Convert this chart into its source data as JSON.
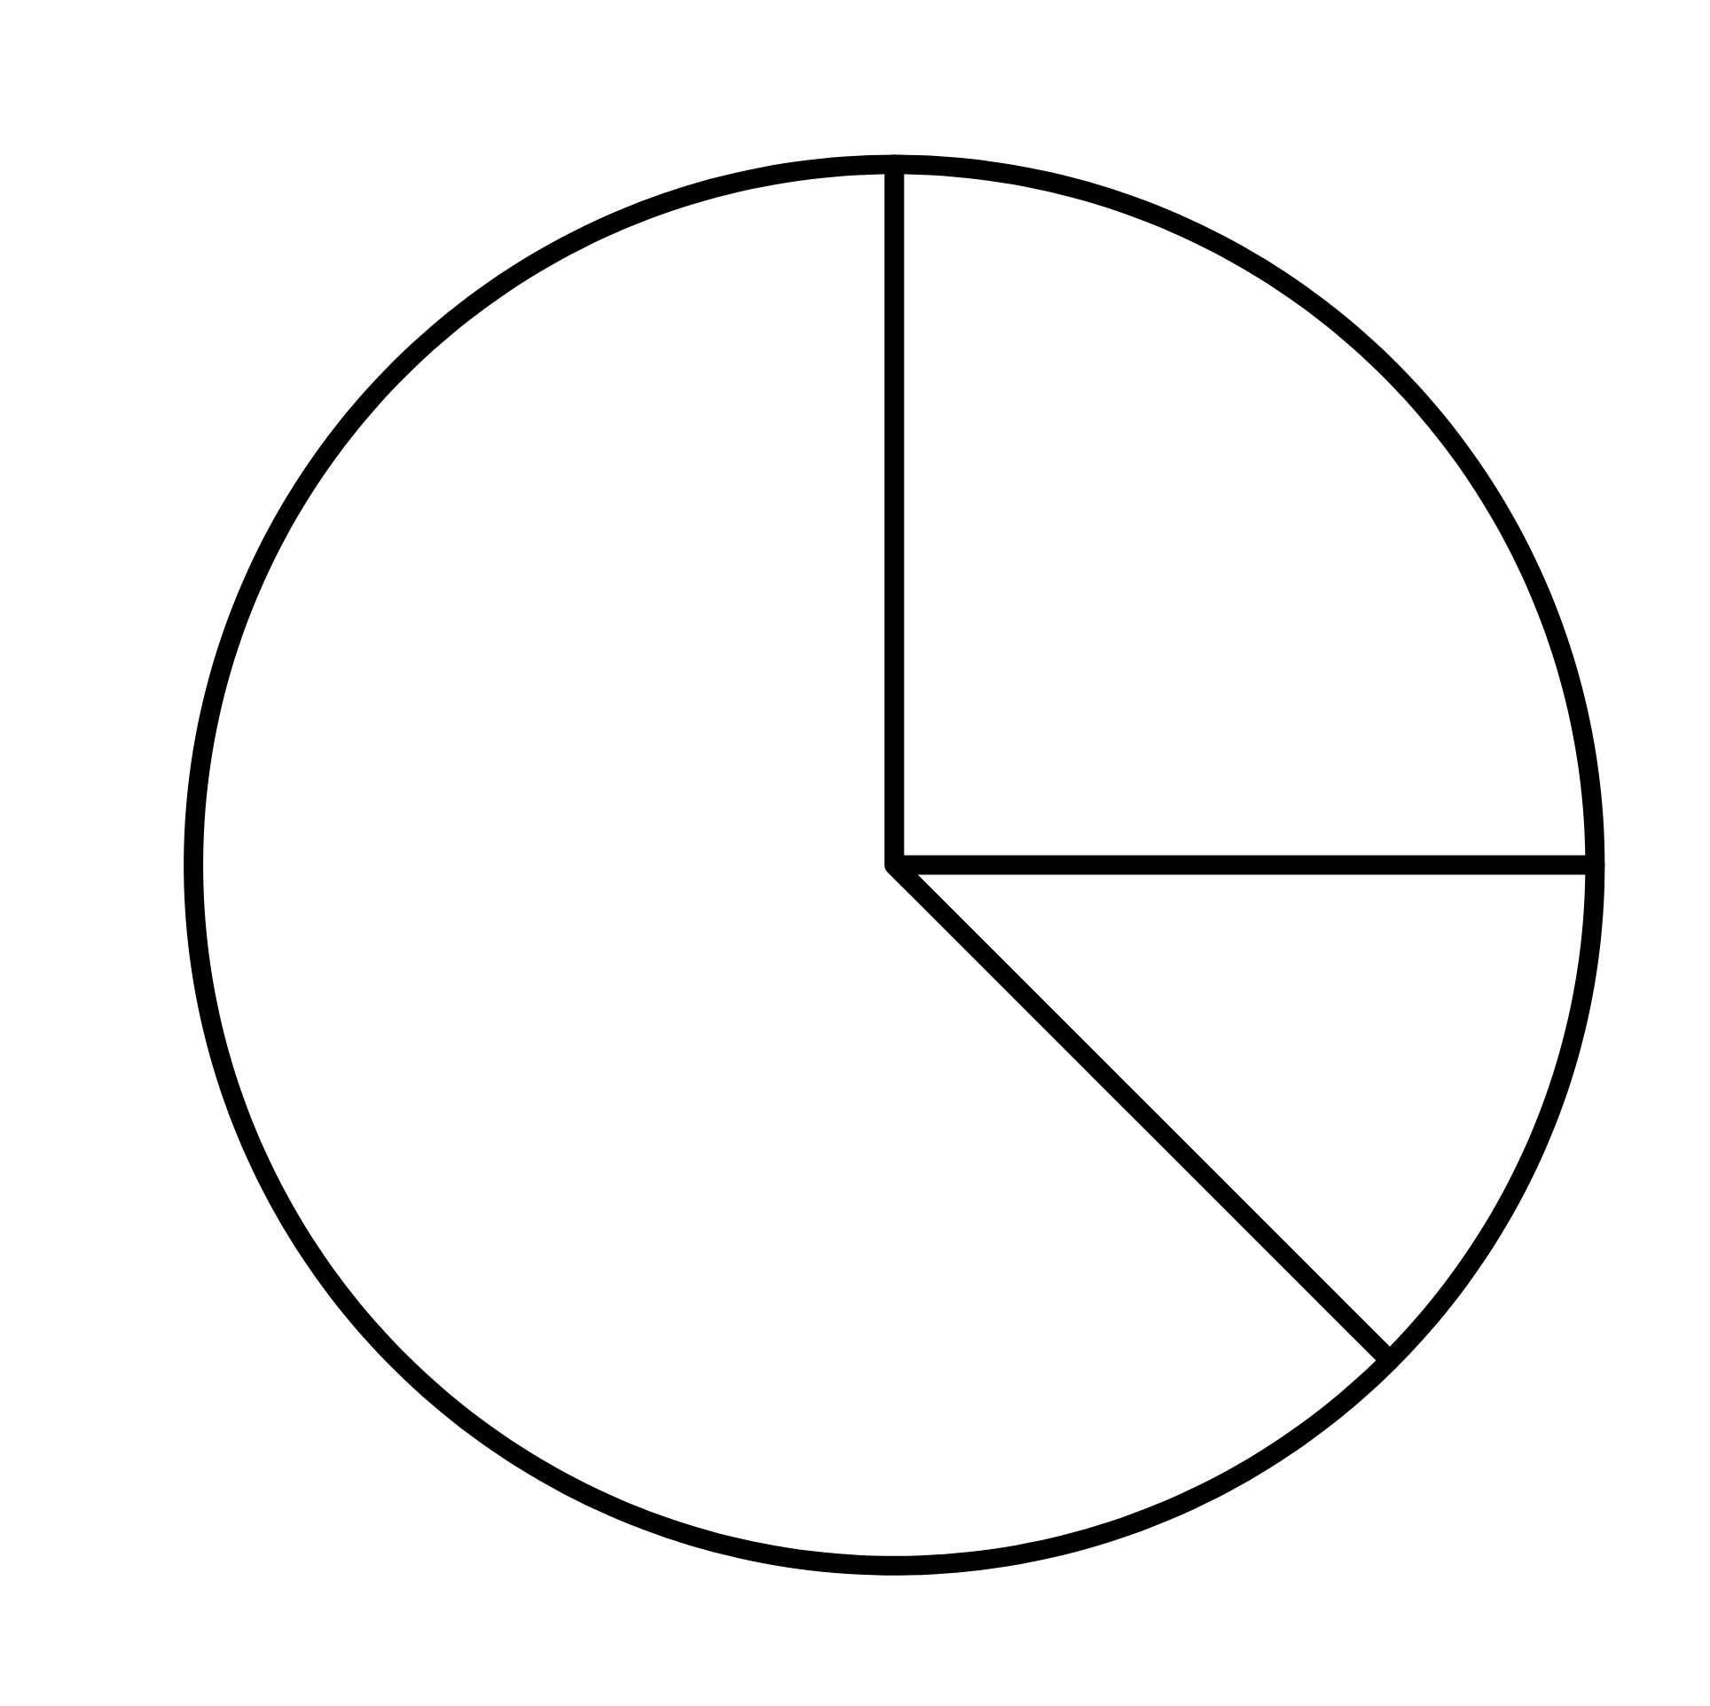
{
  "chart_data": {
    "type": "pie",
    "categories": [
      null,
      null,
      null
    ],
    "values": [
      25,
      12.5,
      62.5
    ],
    "colors": [
      "#ffffff",
      "#ffffff",
      "#ffffff"
    ]
  }
}
